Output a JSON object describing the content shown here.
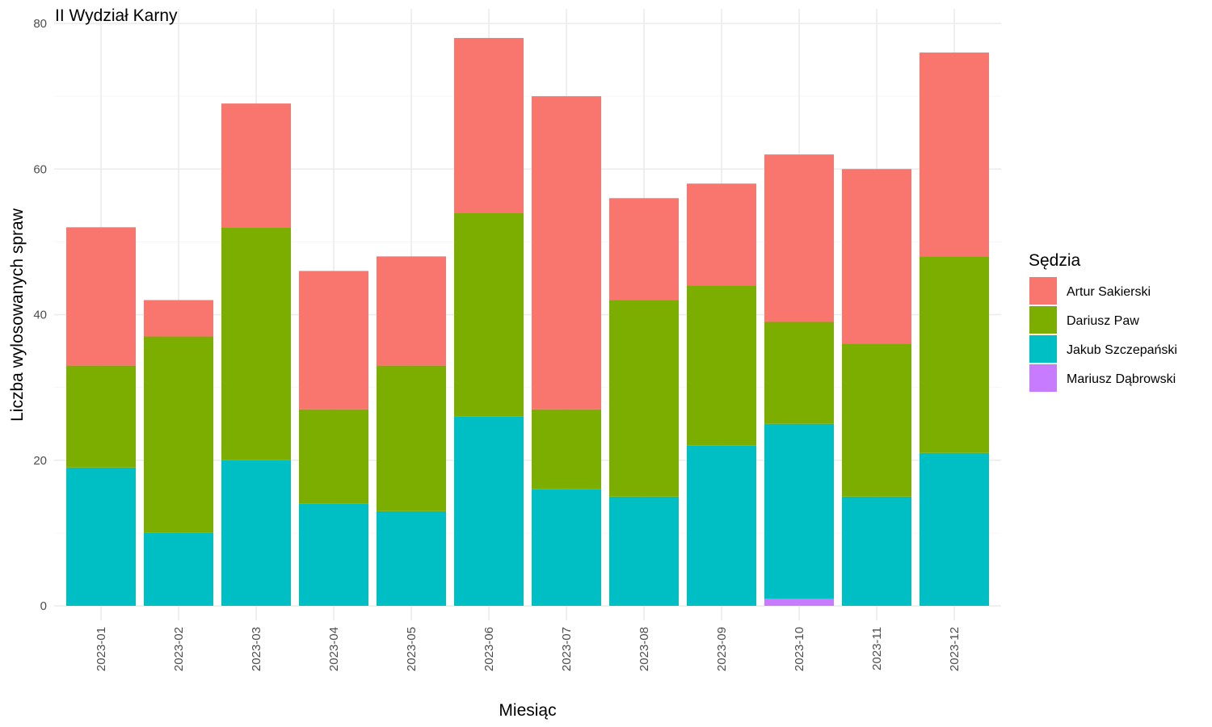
{
  "chart_data": {
    "type": "bar",
    "stacked": true,
    "title": "II Wydział Karny",
    "xlabel": "Miesiąc",
    "ylabel": "Liczba wylosowanych spraw",
    "ylim": [
      0,
      80
    ],
    "yticks": [
      0,
      20,
      40,
      60,
      80
    ],
    "grid": true,
    "legend_position": "right",
    "legend_title": "Sędzia",
    "categories": [
      "2023-01",
      "2023-02",
      "2023-03",
      "2023-04",
      "2023-05",
      "2023-06",
      "2023-07",
      "2023-08",
      "2023-09",
      "2023-10",
      "2023-11",
      "2023-12"
    ],
    "series": [
      {
        "name": "Mariusz Dąbrowski",
        "color": "#C77CFF",
        "values": [
          0,
          0,
          0,
          0,
          0,
          0,
          0,
          0,
          0,
          1,
          0,
          0
        ]
      },
      {
        "name": "Jakub Szczepański",
        "color": "#00BFC4",
        "values": [
          19,
          10,
          20,
          14,
          13,
          26,
          16,
          15,
          22,
          24,
          15,
          21
        ]
      },
      {
        "name": "Dariusz Paw",
        "color": "#7CAE00",
        "values": [
          14,
          27,
          32,
          13,
          20,
          28,
          11,
          27,
          22,
          14,
          21,
          27
        ]
      },
      {
        "name": "Artur Sakierski",
        "color": "#F8766D",
        "values": [
          19,
          5,
          17,
          19,
          15,
          24,
          43,
          14,
          14,
          23,
          24,
          28
        ]
      }
    ],
    "legend_order": [
      "Artur Sakierski",
      "Dariusz Paw",
      "Jakub Szczepański",
      "Mariusz Dąbrowski"
    ]
  }
}
